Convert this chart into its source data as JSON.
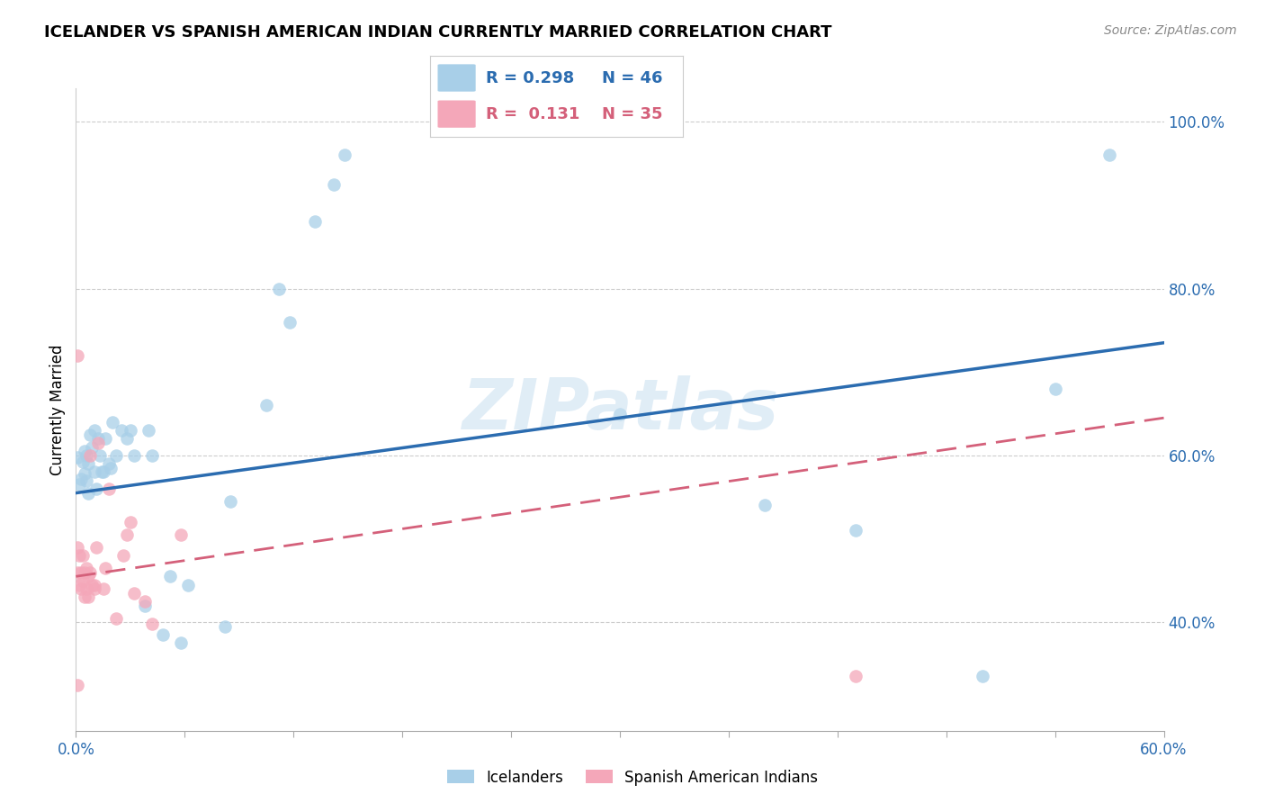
{
  "title": "ICELANDER VS SPANISH AMERICAN INDIAN CURRENTLY MARRIED CORRELATION CHART",
  "source": "Source: ZipAtlas.com",
  "ylabel": "Currently Married",
  "watermark": "ZIPatlas",
  "xlim": [
    0.0,
    0.6
  ],
  "ylim": [
    0.27,
    1.04
  ],
  "xtick_label_positions": [
    0.0,
    0.6
  ],
  "xtick_minor_positions": [
    0.0,
    0.06,
    0.12,
    0.18,
    0.24,
    0.3,
    0.36,
    0.42,
    0.48,
    0.54,
    0.6
  ],
  "ytick_positions": [
    0.4,
    0.6,
    0.8,
    1.0
  ],
  "blue_color": "#a8cfe8",
  "pink_color": "#f4a7b9",
  "blue_line_color": "#2b6cb0",
  "pink_line_color": "#d4607a",
  "title_fontsize": 13,
  "tick_fontsize": 12,
  "blue_scatter": [
    [
      0.001,
      0.598
    ],
    [
      0.002,
      0.565
    ],
    [
      0.003,
      0.572
    ],
    [
      0.004,
      0.592
    ],
    [
      0.005,
      0.578
    ],
    [
      0.005,
      0.605
    ],
    [
      0.006,
      0.6
    ],
    [
      0.006,
      0.57
    ],
    [
      0.007,
      0.59
    ],
    [
      0.007,
      0.555
    ],
    [
      0.008,
      0.625
    ],
    [
      0.009,
      0.61
    ],
    [
      0.01,
      0.63
    ],
    [
      0.01,
      0.58
    ],
    [
      0.011,
      0.56
    ],
    [
      0.012,
      0.62
    ],
    [
      0.013,
      0.6
    ],
    [
      0.014,
      0.58
    ],
    [
      0.015,
      0.58
    ],
    [
      0.016,
      0.62
    ],
    [
      0.018,
      0.59
    ],
    [
      0.019,
      0.585
    ],
    [
      0.02,
      0.64
    ],
    [
      0.022,
      0.6
    ],
    [
      0.025,
      0.63
    ],
    [
      0.028,
      0.62
    ],
    [
      0.03,
      0.63
    ],
    [
      0.032,
      0.6
    ],
    [
      0.038,
      0.42
    ],
    [
      0.04,
      0.63
    ],
    [
      0.042,
      0.6
    ],
    [
      0.048,
      0.385
    ],
    [
      0.052,
      0.455
    ],
    [
      0.058,
      0.375
    ],
    [
      0.062,
      0.445
    ],
    [
      0.082,
      0.395
    ],
    [
      0.085,
      0.545
    ],
    [
      0.105,
      0.66
    ],
    [
      0.112,
      0.8
    ],
    [
      0.118,
      0.76
    ],
    [
      0.132,
      0.88
    ],
    [
      0.142,
      0.925
    ],
    [
      0.148,
      0.96
    ],
    [
      0.3,
      0.65
    ],
    [
      0.38,
      0.54
    ],
    [
      0.43,
      0.51
    ],
    [
      0.5,
      0.335
    ],
    [
      0.54,
      0.68
    ],
    [
      0.57,
      0.96
    ]
  ],
  "pink_scatter": [
    [
      0.001,
      0.49
    ],
    [
      0.001,
      0.46
    ],
    [
      0.002,
      0.445
    ],
    [
      0.002,
      0.48
    ],
    [
      0.003,
      0.44
    ],
    [
      0.003,
      0.46
    ],
    [
      0.004,
      0.45
    ],
    [
      0.004,
      0.48
    ],
    [
      0.005,
      0.43
    ],
    [
      0.005,
      0.46
    ],
    [
      0.006,
      0.465
    ],
    [
      0.006,
      0.44
    ],
    [
      0.007,
      0.455
    ],
    [
      0.007,
      0.43
    ],
    [
      0.008,
      0.46
    ],
    [
      0.008,
      0.6
    ],
    [
      0.009,
      0.445
    ],
    [
      0.01,
      0.445
    ],
    [
      0.01,
      0.44
    ],
    [
      0.011,
      0.49
    ],
    [
      0.012,
      0.615
    ],
    [
      0.015,
      0.44
    ],
    [
      0.016,
      0.465
    ],
    [
      0.018,
      0.56
    ],
    [
      0.022,
      0.405
    ],
    [
      0.026,
      0.48
    ],
    [
      0.028,
      0.505
    ],
    [
      0.032,
      0.435
    ],
    [
      0.038,
      0.425
    ],
    [
      0.042,
      0.398
    ],
    [
      0.001,
      0.325
    ],
    [
      0.001,
      0.72
    ],
    [
      0.43,
      0.335
    ],
    [
      0.058,
      0.505
    ],
    [
      0.03,
      0.52
    ]
  ],
  "blue_reg_line_x": [
    0.0,
    0.6
  ],
  "blue_reg_line_y": [
    0.555,
    0.735
  ],
  "pink_reg_line_x": [
    0.0,
    0.6
  ],
  "pink_reg_line_y": [
    0.455,
    0.645
  ]
}
